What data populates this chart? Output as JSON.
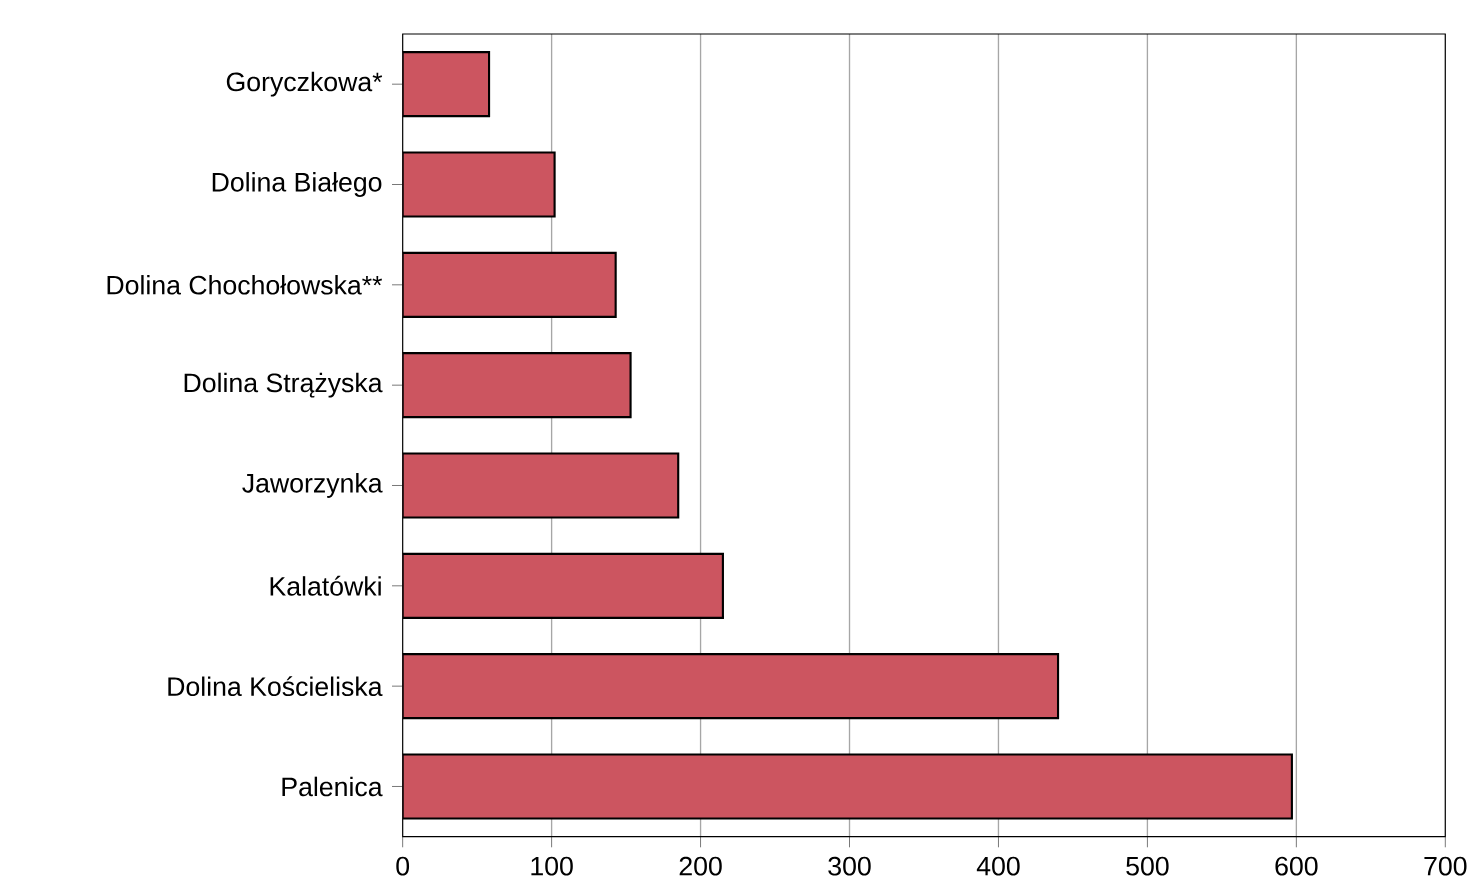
{
  "chart_data": {
    "type": "bar",
    "orientation": "horizontal",
    "categories": [
      "Goryczkowa*",
      "Dolina Białego",
      "Dolina Chochołowska**",
      "Dolina Strążyska",
      "Jaworzynka",
      "Kalatówki",
      "Dolina Kościeliska",
      "Palenica"
    ],
    "values": [
      58,
      102,
      143,
      153,
      185,
      215,
      440,
      597
    ],
    "color": "#cc5560",
    "xlim": [
      0,
      700
    ],
    "xticks": [
      0,
      100,
      200,
      300,
      400,
      500,
      600,
      700
    ],
    "grid": "x"
  }
}
